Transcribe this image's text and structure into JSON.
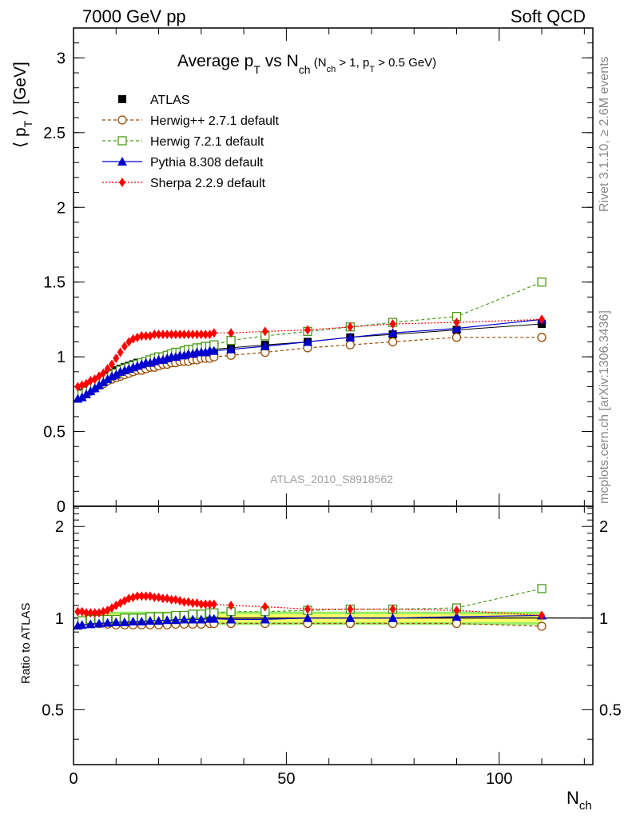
{
  "header": {
    "left": "7000 GeV pp",
    "right": "Soft QCD"
  },
  "side_text": {
    "rivet": "Rivet 3.1.10, ≥ 2.6M events",
    "mcplots": "mcplots.cern.ch [arXiv:1306.3436]"
  },
  "analysis_label": "ATLAS_2010_S8918562",
  "colors": {
    "atlas": "#000000",
    "herwigpp": "#9a4a00",
    "herwig7": "#4a9a1a",
    "pythia": "#0000cc",
    "sherpa": "#ff0000",
    "band_inner": "#ffff66",
    "band_outer": "#99ee66"
  },
  "chart_data": [
    {
      "type": "line",
      "title": "Average pT vs Nch (Nch > 1, pT > 0.5 GeV)",
      "title_parts": {
        "main": "Average p",
        "sub1": "T",
        "mid": " vs N",
        "sub2": "ch",
        "cond_a": " (N",
        "cond_sub_a": "ch",
        "cond_b": " > 1, p",
        "cond_sub_b": "T",
        "cond_c": " > 0.5 GeV)"
      },
      "ylabel": "⟨ pT ⟩ [GeV]",
      "ylabel_parts": {
        "open": "⟨ p",
        "sub": "T",
        "close": " ⟩  [GeV]"
      },
      "xlim": [
        0,
        122
      ],
      "ylim": [
        0,
        3.2
      ],
      "yticks": [
        0,
        0.5,
        1,
        1.5,
        2,
        2.5,
        3
      ],
      "ytick_labels": [
        "0",
        "0.5",
        "1",
        "1.5",
        "2",
        "2.5",
        "3"
      ],
      "legend_position": "top-left",
      "series": [
        {
          "name": "ATLAS",
          "key": "atlas",
          "marker": "square-filled",
          "x": [
            2,
            3,
            4,
            5,
            6,
            7,
            8,
            9,
            10,
            11,
            12,
            13,
            14,
            15,
            16,
            17,
            18,
            19,
            20,
            21,
            22,
            23,
            24,
            25,
            26,
            27,
            28,
            29,
            30,
            31,
            32,
            33,
            37,
            45,
            55,
            65,
            75,
            90,
            110
          ],
          "y": [
            0.76,
            0.78,
            0.8,
            0.82,
            0.84,
            0.86,
            0.88,
            0.89,
            0.91,
            0.92,
            0.93,
            0.94,
            0.95,
            0.96,
            0.96,
            0.97,
            0.98,
            0.98,
            0.99,
            1.0,
            1.0,
            1.01,
            1.01,
            1.02,
            1.02,
            1.03,
            1.03,
            1.03,
            1.04,
            1.04,
            1.04,
            1.05,
            1.06,
            1.08,
            1.1,
            1.13,
            1.15,
            1.18,
            1.22
          ]
        },
        {
          "name": "Herwig++ 2.7.1 default",
          "key": "herwigpp",
          "marker": "circle-open",
          "x": [
            2,
            3,
            4,
            5,
            6,
            7,
            8,
            9,
            10,
            11,
            12,
            13,
            14,
            15,
            16,
            17,
            18,
            19,
            20,
            21,
            22,
            23,
            24,
            25,
            26,
            27,
            28,
            29,
            30,
            31,
            32,
            33,
            37,
            45,
            55,
            65,
            75,
            90,
            110
          ],
          "y": [
            0.74,
            0.76,
            0.77,
            0.79,
            0.81,
            0.82,
            0.84,
            0.85,
            0.86,
            0.87,
            0.88,
            0.89,
            0.9,
            0.91,
            0.91,
            0.92,
            0.93,
            0.93,
            0.94,
            0.95,
            0.95,
            0.96,
            0.96,
            0.97,
            0.97,
            0.97,
            0.98,
            0.98,
            0.99,
            0.99,
            0.99,
            1.0,
            1.01,
            1.03,
            1.06,
            1.08,
            1.1,
            1.13,
            1.13
          ]
        },
        {
          "name": "Herwig 7.2.1 default",
          "key": "herwig7",
          "marker": "square-open",
          "x": [
            2,
            3,
            4,
            5,
            6,
            7,
            8,
            9,
            10,
            11,
            12,
            13,
            14,
            15,
            16,
            17,
            18,
            19,
            20,
            21,
            22,
            23,
            24,
            25,
            26,
            27,
            28,
            29,
            30,
            31,
            32,
            33,
            37,
            45,
            55,
            65,
            75,
            90,
            110
          ],
          "y": [
            0.75,
            0.77,
            0.79,
            0.81,
            0.83,
            0.85,
            0.86,
            0.88,
            0.89,
            0.91,
            0.92,
            0.93,
            0.94,
            0.95,
            0.96,
            0.97,
            0.98,
            0.99,
            1.0,
            1.0,
            1.01,
            1.02,
            1.03,
            1.03,
            1.04,
            1.05,
            1.05,
            1.06,
            1.06,
            1.07,
            1.07,
            1.08,
            1.11,
            1.14,
            1.17,
            1.2,
            1.23,
            1.27,
            1.5
          ]
        },
        {
          "name": "Pythia 8.308 default",
          "key": "pythia",
          "marker": "triangle-filled",
          "x": [
            1,
            2,
            3,
            4,
            5,
            6,
            7,
            8,
            9,
            10,
            11,
            12,
            13,
            14,
            15,
            16,
            17,
            18,
            19,
            20,
            21,
            22,
            23,
            24,
            25,
            26,
            27,
            28,
            29,
            30,
            31,
            32,
            33,
            37,
            45,
            55,
            65,
            75,
            90,
            110
          ],
          "y": [
            0.72,
            0.73,
            0.75,
            0.77,
            0.79,
            0.81,
            0.83,
            0.85,
            0.87,
            0.88,
            0.9,
            0.91,
            0.92,
            0.93,
            0.94,
            0.95,
            0.96,
            0.96,
            0.97,
            0.98,
            0.98,
            0.99,
            1.0,
            1.0,
            1.01,
            1.01,
            1.02,
            1.02,
            1.03,
            1.03,
            1.03,
            1.04,
            1.04,
            1.05,
            1.07,
            1.1,
            1.13,
            1.16,
            1.19,
            1.25
          ]
        },
        {
          "name": "Sherpa 2.2.9 default",
          "key": "sherpa",
          "marker": "diamond-filled",
          "x": [
            1,
            2,
            3,
            4,
            5,
            6,
            7,
            8,
            9,
            10,
            11,
            12,
            13,
            14,
            15,
            16,
            17,
            18,
            19,
            20,
            21,
            22,
            23,
            24,
            25,
            26,
            27,
            28,
            29,
            30,
            31,
            32,
            33,
            37,
            45,
            55,
            65,
            75,
            90,
            110
          ],
          "y": [
            0.8,
            0.81,
            0.82,
            0.84,
            0.85,
            0.87,
            0.89,
            0.92,
            0.95,
            0.99,
            1.03,
            1.07,
            1.1,
            1.12,
            1.13,
            1.14,
            1.14,
            1.14,
            1.15,
            1.15,
            1.15,
            1.15,
            1.15,
            1.15,
            1.15,
            1.15,
            1.15,
            1.15,
            1.15,
            1.15,
            1.15,
            1.15,
            1.16,
            1.16,
            1.17,
            1.18,
            1.2,
            1.22,
            1.23,
            1.25
          ]
        }
      ]
    },
    {
      "type": "line",
      "ylabel": "Ratio to ATLAS",
      "xlabel": "Nch",
      "xlabel_parts": {
        "main": "N",
        "sub": "ch"
      },
      "xlim": [
        0,
        122
      ],
      "ylim": [
        0.33,
        2.33
      ],
      "yticks": [
        0.5,
        1,
        2
      ],
      "ytick_labels": [
        "0.5",
        "1",
        "2"
      ],
      "xticks": [
        0,
        50,
        100
      ],
      "xtick_labels": [
        "0",
        "50",
        "100"
      ],
      "band": {
        "x": [
          2,
          110
        ],
        "inner_halfwidth": 0.03,
        "outer_halfwidth": 0.05
      },
      "series": [
        {
          "name": "Herwig++ 2.7.1 default",
          "key": "herwigpp",
          "marker": "circle-open",
          "x": [
            2,
            4,
            6,
            8,
            10,
            12,
            14,
            16,
            18,
            20,
            22,
            24,
            26,
            28,
            30,
            32,
            33,
            37,
            45,
            55,
            65,
            75,
            90,
            110
          ],
          "y": [
            0.97,
            0.96,
            0.96,
            0.955,
            0.95,
            0.95,
            0.95,
            0.95,
            0.95,
            0.95,
            0.95,
            0.955,
            0.955,
            0.955,
            0.955,
            0.96,
            0.96,
            0.96,
            0.96,
            0.96,
            0.96,
            0.96,
            0.96,
            0.94
          ]
        },
        {
          "name": "Herwig 7.2.1 default",
          "key": "herwig7",
          "marker": "square-open",
          "x": [
            2,
            4,
            6,
            8,
            10,
            12,
            14,
            16,
            18,
            20,
            22,
            24,
            26,
            28,
            30,
            32,
            33,
            37,
            45,
            55,
            65,
            75,
            90,
            110
          ],
          "y": [
            0.98,
            0.99,
            0.99,
            0.99,
            0.99,
            1.0,
            1.0,
            1.0,
            1.01,
            1.01,
            1.01,
            1.02,
            1.02,
            1.03,
            1.03,
            1.04,
            1.04,
            1.05,
            1.05,
            1.06,
            1.07,
            1.07,
            1.08,
            1.25
          ]
        },
        {
          "name": "Pythia 8.308 default",
          "key": "pythia",
          "marker": "triangle-filled",
          "x": [
            1,
            2,
            4,
            6,
            8,
            10,
            12,
            14,
            16,
            18,
            20,
            22,
            24,
            26,
            28,
            30,
            32,
            33,
            37,
            45,
            55,
            65,
            75,
            90,
            110
          ],
          "y": [
            0.945,
            0.95,
            0.955,
            0.96,
            0.965,
            0.97,
            0.97,
            0.975,
            0.975,
            0.98,
            0.98,
            0.985,
            0.985,
            0.99,
            0.99,
            0.99,
            0.995,
            0.995,
            0.99,
            0.99,
            1.0,
            1.0,
            1.0,
            1.01,
            1.02
          ]
        },
        {
          "name": "Sherpa 2.2.9 default",
          "key": "sherpa",
          "marker": "diamond-filled",
          "x": [
            1,
            2,
            3,
            4,
            5,
            6,
            7,
            8,
            9,
            10,
            11,
            12,
            13,
            14,
            15,
            16,
            17,
            18,
            19,
            20,
            21,
            22,
            23,
            24,
            25,
            26,
            27,
            28,
            29,
            30,
            31,
            32,
            33,
            37,
            45,
            55,
            65,
            75,
            90,
            110
          ],
          "y": [
            1.05,
            1.05,
            1.04,
            1.04,
            1.04,
            1.04,
            1.05,
            1.06,
            1.08,
            1.1,
            1.12,
            1.14,
            1.16,
            1.17,
            1.18,
            1.18,
            1.18,
            1.18,
            1.17,
            1.17,
            1.16,
            1.16,
            1.15,
            1.15,
            1.14,
            1.13,
            1.13,
            1.12,
            1.12,
            1.11,
            1.11,
            1.11,
            1.11,
            1.1,
            1.09,
            1.07,
            1.07,
            1.07,
            1.06,
            1.02
          ]
        }
      ]
    }
  ]
}
